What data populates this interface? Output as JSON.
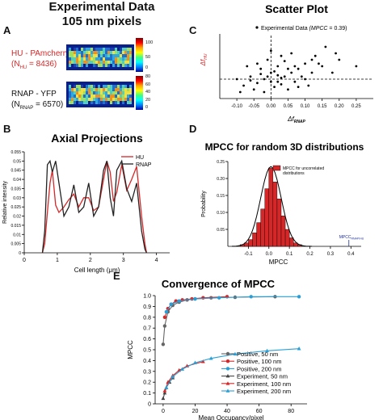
{
  "panels": {
    "A": {
      "label": "A",
      "title_line1": "Experimental Data",
      "title_line2": "105 nm pixels",
      "hu_name": "HU - PAmcherry",
      "hu_count": "(N",
      "hu_sub": "HU",
      "hu_count_val": " = 8436)",
      "rnap_name": "RNAP - YFP",
      "rnap_count": "(N",
      "rnap_sub": "RNAP",
      "rnap_count_val": " = 6570)",
      "colorbar_top": {
        "ticks": [
          "100",
          "50",
          "0"
        ]
      },
      "colorbar_bottom": {
        "ticks": [
          "80",
          "60",
          "40",
          "20",
          "0"
        ]
      }
    },
    "B": {
      "label": "B"
    },
    "C": {
      "label": "C"
    },
    "D": {
      "label": "D"
    },
    "E": {
      "label": "E"
    }
  },
  "chart_data": [
    {
      "id": "axial",
      "type": "line",
      "title": "Axial Projections",
      "xlabel": "Cell length (μm)",
      "ylabel": "Relative intensity",
      "xlim": [
        0,
        4.4
      ],
      "ylim": [
        0,
        0.055
      ],
      "xticks": [
        "0",
        "1",
        "2",
        "3",
        "4"
      ],
      "yticks": [
        "0",
        "0.005",
        "0.01",
        "0.015",
        "0.02",
        "0.025",
        "0.03",
        "0.035",
        "0.04",
        "0.045",
        "0.05",
        "0.055"
      ],
      "legend": "top-right",
      "series": [
        {
          "name": "HU",
          "color": "#d62728",
          "x": [
            0.55,
            0.62,
            0.7,
            0.78,
            0.85,
            0.95,
            1.05,
            1.2,
            1.35,
            1.5,
            1.65,
            1.8,
            1.95,
            2.1,
            2.25,
            2.4,
            2.5,
            2.6,
            2.7,
            2.8,
            2.95,
            3.1,
            3.25,
            3.4,
            3.55,
            3.65,
            3.7
          ],
          "y": [
            0.0,
            0.005,
            0.022,
            0.038,
            0.045,
            0.026,
            0.022,
            0.025,
            0.029,
            0.032,
            0.025,
            0.03,
            0.03,
            0.023,
            0.025,
            0.04,
            0.05,
            0.044,
            0.028,
            0.033,
            0.048,
            0.034,
            0.04,
            0.047,
            0.02,
            0.005,
            0.0
          ]
        },
        {
          "name": "RNAP",
          "color": "#222222",
          "x": [
            0.55,
            0.62,
            0.7,
            0.78,
            0.85,
            0.95,
            1.05,
            1.2,
            1.35,
            1.5,
            1.65,
            1.8,
            1.95,
            2.1,
            2.25,
            2.4,
            2.5,
            2.6,
            2.7,
            2.8,
            2.95,
            3.1,
            3.25,
            3.4,
            3.55,
            3.65,
            3.7
          ],
          "y": [
            0.0,
            0.012,
            0.048,
            0.05,
            0.044,
            0.05,
            0.038,
            0.02,
            0.025,
            0.037,
            0.022,
            0.025,
            0.038,
            0.02,
            0.025,
            0.045,
            0.05,
            0.03,
            0.02,
            0.045,
            0.05,
            0.035,
            0.028,
            0.038,
            0.012,
            0.002,
            0.0
          ]
        }
      ]
    },
    {
      "id": "scatter",
      "type": "scatter",
      "title": "Scatter Plot",
      "legend_text": "Experimental Data",
      "legend_italic": "(MPCC",
      "legend_tail": " = 0.39)",
      "xlabel": "Δf",
      "xlabel_sub": "RNAP",
      "ylabel": "Δf",
      "ylabel_sub": "HU",
      "xlim": [
        -0.15,
        0.3
      ],
      "ylim": [
        -0.15,
        0.35
      ],
      "xticks": [
        -0.1,
        -0.05,
        0,
        0.05,
        0.1,
        0.15,
        0.2,
        0.25
      ],
      "xtick_labels": [
        "-0.10",
        "-0.05",
        "0.00",
        "0.05",
        "0.10",
        "0.15",
        "0.20",
        "0.25"
      ],
      "points": [
        [
          -0.02,
          0.0
        ],
        [
          0.0,
          -0.02
        ],
        [
          0.02,
          0.03
        ],
        [
          0.04,
          0.02
        ],
        [
          -0.04,
          -0.03
        ],
        [
          0.01,
          0.06
        ],
        [
          0.06,
          0.05
        ],
        [
          -0.06,
          0.02
        ],
        [
          0.03,
          -0.04
        ],
        [
          0.08,
          0.08
        ],
        [
          0.1,
          0.12
        ],
        [
          -0.01,
          0.15
        ],
        [
          0.12,
          0.05
        ],
        [
          -0.08,
          -0.05
        ],
        [
          0.05,
          -0.08
        ],
        [
          0.15,
          0.1
        ],
        [
          0.0,
          0.22
        ],
        [
          0.2,
          0.15
        ],
        [
          0.02,
          0.1
        ],
        [
          -0.03,
          0.08
        ],
        [
          0.07,
          -0.02
        ],
        [
          -0.05,
          -0.08
        ],
        [
          0.09,
          0.02
        ],
        [
          0.13,
          0.18
        ],
        [
          -0.1,
          0.0
        ],
        [
          0.04,
          0.14
        ],
        [
          0.18,
          0.05
        ],
        [
          -0.02,
          -0.1
        ],
        [
          0.06,
          0.2
        ],
        [
          0.11,
          -0.05
        ],
        [
          -0.07,
          0.1
        ],
        [
          0.16,
          0.25
        ],
        [
          0.01,
          -0.06
        ],
        [
          -0.03,
          0.04
        ],
        [
          0.05,
          0.08
        ],
        [
          0.03,
          0.01
        ],
        [
          -0.01,
          0.02
        ],
        [
          0.08,
          -0.06
        ],
        [
          0.14,
          0.12
        ],
        [
          -0.04,
          0.12
        ],
        [
          0.02,
          -0.02
        ],
        [
          0.25,
          0.1
        ],
        [
          -0.09,
          -0.1
        ],
        [
          0.07,
          0.1
        ],
        [
          0.0,
          0.05
        ],
        [
          0.1,
          0.0
        ],
        [
          0.03,
          0.18
        ],
        [
          -0.06,
          -0.01
        ],
        [
          0.12,
          0.15
        ],
        [
          0.19,
          0.2
        ]
      ],
      "hline": 0,
      "vline": 0
    },
    {
      "id": "mpcc_hist",
      "type": "bar",
      "title": "MPCC for random 3D distributions",
      "legend": "MPCC for uncorrelated distributions",
      "xlabel": "MPCC",
      "ylabel": "Probability",
      "xlim": [
        -0.2,
        0.45
      ],
      "ylim": [
        0,
        0.25
      ],
      "xticks": [
        "-0.1",
        "0.0",
        "0.1",
        "0.2",
        "0.3",
        "0.4"
      ],
      "yticks": [
        "0.05",
        "0.10",
        "0.15",
        "0.20",
        "0.25"
      ],
      "bins": [
        -0.13,
        -0.11,
        -0.09,
        -0.07,
        -0.05,
        -0.03,
        -0.01,
        0.01,
        0.03,
        0.05,
        0.07,
        0.09,
        0.11,
        0.13,
        0.15
      ],
      "values": [
        0.005,
        0.01,
        0.02,
        0.04,
        0.07,
        0.11,
        0.17,
        0.23,
        0.19,
        0.14,
        0.09,
        0.05,
        0.025,
        0.01,
        0.005
      ],
      "bar_color": "#d62728",
      "marker_label": "MPCC",
      "marker_sub": "RNAP/HU",
      "marker_x": 0.39
    },
    {
      "id": "convergence",
      "type": "line",
      "title": "Convergence of MPCC",
      "xlabel": "Mean Occupancy/pixel",
      "ylabel": "MPCC",
      "xlim": [
        -5,
        90
      ],
      "ylim": [
        0,
        1.0
      ],
      "xticks": [
        "0",
        "20",
        "40",
        "60",
        "80"
      ],
      "yticks": [
        "0",
        "0.1",
        "0.2",
        "0.3",
        "0.4",
        "0.5",
        "0.6",
        "0.7",
        "0.8",
        "0.9",
        "1.0"
      ],
      "legend": "bottom-right",
      "series": [
        {
          "name": "Positive, 50 nm",
          "color": "#666666",
          "marker": "circle",
          "x": [
            0,
            1,
            3,
            6,
            10,
            15,
            20,
            30,
            45,
            70
          ],
          "y": [
            0.55,
            0.72,
            0.85,
            0.91,
            0.94,
            0.96,
            0.97,
            0.98,
            0.985,
            0.99
          ]
        },
        {
          "name": "Positive, 100 nm",
          "color": "#d62728",
          "marker": "circle",
          "x": [
            1,
            3,
            5,
            8,
            12,
            18,
            25,
            40
          ],
          "y": [
            0.8,
            0.88,
            0.92,
            0.95,
            0.96,
            0.97,
            0.98,
            0.99
          ]
        },
        {
          "name": "Positive, 200 nm",
          "color": "#2a9fd6",
          "marker": "circle",
          "x": [
            2,
            5,
            10,
            20,
            35,
            55,
            85
          ],
          "y": [
            0.85,
            0.92,
            0.95,
            0.97,
            0.98,
            0.99,
            0.99
          ]
        },
        {
          "name": "Experiment, 50 nm",
          "color": "#444444",
          "marker": "triangle",
          "x": [
            0,
            1,
            2,
            4,
            6
          ],
          "y": [
            0.05,
            0.1,
            0.15,
            0.2,
            0.24
          ]
        },
        {
          "name": "Experiment, 100 nm",
          "color": "#d62728",
          "marker": "triangle",
          "x": [
            1,
            3,
            6,
            10,
            15,
            25
          ],
          "y": [
            0.12,
            0.2,
            0.26,
            0.31,
            0.35,
            0.39
          ]
        },
        {
          "name": "Experiment, 200 nm",
          "color": "#2a9fd6",
          "marker": "triangle",
          "x": [
            2,
            6,
            12,
            20,
            30,
            45,
            65,
            85
          ],
          "y": [
            0.15,
            0.25,
            0.32,
            0.38,
            0.42,
            0.46,
            0.49,
            0.51
          ]
        }
      ]
    }
  ]
}
